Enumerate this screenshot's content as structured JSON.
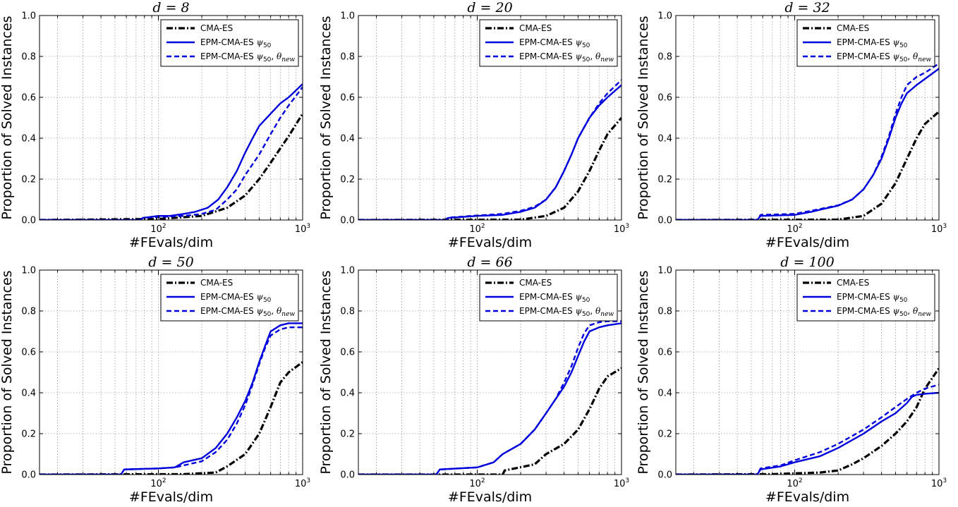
{
  "figure": {
    "xlabel": "#FEvals/dim",
    "ylabel": "Proportion of Solved Instances"
  },
  "chart_data": [
    {
      "type": "line",
      "title": "d = 8",
      "xscale": "log",
      "xlim": [
        15,
        1000
      ],
      "ylim": [
        0,
        1.0
      ],
      "xticks": [
        "10^2",
        "10^3"
      ],
      "yticks": [
        "0.0",
        "0.2",
        "0.4",
        "0.6",
        "0.8",
        "1.0"
      ],
      "grid": true,
      "legend": "top-right",
      "series": [
        {
          "name": "CMA-ES",
          "color": "#000000",
          "style": "dashdot",
          "x": [
            15,
            100,
            200,
            300,
            400,
            500,
            600,
            700,
            800,
            1000
          ],
          "y": [
            0.0,
            0.005,
            0.02,
            0.06,
            0.12,
            0.2,
            0.28,
            0.35,
            0.41,
            0.52
          ]
        },
        {
          "name": "EPM-CMA-ES ψ50",
          "color": "#0000dd",
          "style": "solid",
          "x": [
            15,
            75,
            78,
            100,
            120,
            150,
            180,
            220,
            260,
            300,
            350,
            400,
            450,
            500,
            600,
            700,
            800,
            1000
          ],
          "y": [
            0.0,
            0.0,
            0.01,
            0.02,
            0.02,
            0.03,
            0.04,
            0.06,
            0.1,
            0.16,
            0.24,
            0.33,
            0.4,
            0.46,
            0.52,
            0.57,
            0.6,
            0.665
          ]
        },
        {
          "name": "EPM-CMA-ES ψ50, θnew",
          "color": "#0000dd",
          "style": "dashed",
          "x": [
            15,
            75,
            78,
            100,
            150,
            200,
            250,
            300,
            350,
            400,
            500,
            600,
            700,
            800,
            1000
          ],
          "y": [
            0.0,
            0.0,
            0.01,
            0.015,
            0.02,
            0.03,
            0.05,
            0.1,
            0.15,
            0.22,
            0.32,
            0.42,
            0.5,
            0.56,
            0.65
          ]
        }
      ]
    },
    {
      "type": "line",
      "title": "d = 20",
      "xscale": "log",
      "xlim": [
        15,
        1000
      ],
      "ylim": [
        0,
        1.0
      ],
      "xticks": [
        "10^2",
        "10^3"
      ],
      "yticks": [
        "0.0",
        "0.2",
        "0.4",
        "0.6",
        "0.8",
        "1.0"
      ],
      "grid": true,
      "legend": "top-right",
      "series": [
        {
          "name": "CMA-ES",
          "color": "#000000",
          "style": "dashdot",
          "x": [
            15,
            200,
            300,
            400,
            500,
            600,
            700,
            800,
            1000
          ],
          "y": [
            0.0,
            0.002,
            0.02,
            0.06,
            0.14,
            0.24,
            0.34,
            0.42,
            0.5
          ]
        },
        {
          "name": "EPM-CMA-ES ψ50",
          "color": "#0000dd",
          "style": "solid",
          "x": [
            15,
            60,
            63,
            100,
            150,
            200,
            250,
            300,
            350,
            400,
            450,
            500,
            600,
            700,
            800,
            1000
          ],
          "y": [
            0.0,
            0.0,
            0.01,
            0.02,
            0.025,
            0.04,
            0.06,
            0.1,
            0.16,
            0.24,
            0.32,
            0.4,
            0.5,
            0.56,
            0.6,
            0.66
          ]
        },
        {
          "name": "EPM-CMA-ES ψ50, θnew",
          "color": "#0000dd",
          "style": "dashed",
          "x": [
            15,
            60,
            63,
            100,
            150,
            200,
            250,
            300,
            350,
            400,
            450,
            500,
            600,
            700,
            800,
            1000
          ],
          "y": [
            0.0,
            0.0,
            0.012,
            0.022,
            0.03,
            0.045,
            0.065,
            0.1,
            0.16,
            0.24,
            0.32,
            0.4,
            0.5,
            0.57,
            0.62,
            0.685
          ]
        }
      ]
    },
    {
      "type": "line",
      "title": "d = 32",
      "xscale": "log",
      "xlim": [
        15,
        1000
      ],
      "ylim": [
        0,
        1.0
      ],
      "xticks": [
        "10^2",
        "10^3"
      ],
      "yticks": [
        "0.0",
        "0.2",
        "0.4",
        "0.6",
        "0.8",
        "1.0"
      ],
      "grid": true,
      "legend": "top-right",
      "series": [
        {
          "name": "CMA-ES",
          "color": "#000000",
          "style": "dashdot",
          "x": [
            15,
            200,
            300,
            400,
            500,
            600,
            700,
            800,
            1000
          ],
          "y": [
            0.0,
            0.002,
            0.02,
            0.08,
            0.18,
            0.3,
            0.4,
            0.47,
            0.53
          ]
        },
        {
          "name": "EPM-CMA-ES ψ50",
          "color": "#0000dd",
          "style": "solid",
          "x": [
            15,
            55,
            58,
            100,
            130,
            160,
            200,
            250,
            300,
            350,
            400,
            450,
            500,
            550,
            600,
            700,
            800,
            1000
          ],
          "y": [
            0.0,
            0.0,
            0.02,
            0.025,
            0.04,
            0.055,
            0.07,
            0.1,
            0.15,
            0.22,
            0.3,
            0.4,
            0.5,
            0.57,
            0.62,
            0.66,
            0.69,
            0.74
          ]
        },
        {
          "name": "EPM-CMA-ES ψ50, θnew",
          "color": "#0000dd",
          "style": "dashed",
          "x": [
            15,
            55,
            58,
            100,
            130,
            160,
            200,
            250,
            300,
            350,
            400,
            450,
            500,
            550,
            600,
            700,
            800,
            1000
          ],
          "y": [
            0.0,
            0.0,
            0.025,
            0.03,
            0.045,
            0.058,
            0.072,
            0.1,
            0.15,
            0.22,
            0.31,
            0.41,
            0.52,
            0.6,
            0.66,
            0.7,
            0.72,
            0.765
          ]
        }
      ]
    },
    {
      "type": "line",
      "title": "d = 50",
      "xscale": "log",
      "xlim": [
        15,
        1000
      ],
      "ylim": [
        0,
        1.0
      ],
      "xticks": [
        "10^2",
        "10^3"
      ],
      "yticks": [
        "0.0",
        "0.2",
        "0.4",
        "0.6",
        "0.8",
        "1.0"
      ],
      "grid": true,
      "legend": "top-right",
      "series": [
        {
          "name": "CMA-ES",
          "color": "#000000",
          "style": "dashdot",
          "x": [
            15,
            150,
            250,
            300,
            400,
            500,
            600,
            700,
            800,
            1000
          ],
          "y": [
            0.0,
            0.002,
            0.01,
            0.04,
            0.1,
            0.2,
            0.33,
            0.45,
            0.5,
            0.55
          ]
        },
        {
          "name": "EPM-CMA-ES ψ50",
          "color": "#0000dd",
          "style": "solid",
          "x": [
            15,
            55,
            58,
            100,
            130,
            150,
            200,
            250,
            300,
            350,
            400,
            450,
            500,
            550,
            600,
            700,
            800,
            1000
          ],
          "y": [
            0.0,
            0.0,
            0.025,
            0.03,
            0.035,
            0.06,
            0.08,
            0.13,
            0.2,
            0.28,
            0.36,
            0.45,
            0.55,
            0.63,
            0.7,
            0.73,
            0.74,
            0.74
          ]
        },
        {
          "name": "EPM-CMA-ES ψ50, θnew",
          "color": "#0000dd",
          "style": "dashed",
          "x": [
            15,
            55,
            58,
            100,
            130,
            150,
            200,
            250,
            300,
            350,
            400,
            450,
            500,
            550,
            600,
            700,
            800,
            1000
          ],
          "y": [
            0.0,
            0.0,
            0.025,
            0.03,
            0.035,
            0.045,
            0.065,
            0.11,
            0.17,
            0.25,
            0.34,
            0.44,
            0.54,
            0.62,
            0.68,
            0.71,
            0.72,
            0.72
          ]
        }
      ]
    },
    {
      "type": "line",
      "title": "d = 66",
      "xscale": "log",
      "xlim": [
        15,
        1000
      ],
      "ylim": [
        0,
        1.0
      ],
      "xticks": [
        "10^2",
        "10^3"
      ],
      "yticks": [
        "0.0",
        "0.2",
        "0.4",
        "0.6",
        "0.8",
        "1.0"
      ],
      "grid": true,
      "legend": "top-right",
      "series": [
        {
          "name": "CMA-ES",
          "color": "#000000",
          "style": "dashdot",
          "x": [
            15,
            150,
            155,
            250,
            300,
            400,
            500,
            600,
            700,
            800,
            1000
          ],
          "y": [
            0.0,
            0.0,
            0.02,
            0.05,
            0.1,
            0.15,
            0.22,
            0.32,
            0.42,
            0.48,
            0.52
          ]
        },
        {
          "name": "EPM-CMA-ES ψ50",
          "color": "#0000dd",
          "style": "solid",
          "x": [
            15,
            52,
            55,
            100,
            130,
            150,
            200,
            250,
            300,
            350,
            400,
            450,
            500,
            550,
            600,
            700,
            800,
            1000
          ],
          "y": [
            0.0,
            0.0,
            0.025,
            0.035,
            0.06,
            0.1,
            0.15,
            0.22,
            0.3,
            0.37,
            0.43,
            0.5,
            0.58,
            0.65,
            0.7,
            0.72,
            0.73,
            0.74
          ]
        },
        {
          "name": "EPM-CMA-ES ψ50, θnew",
          "color": "#0000dd",
          "style": "dashed",
          "x": [
            15,
            52,
            55,
            100,
            130,
            150,
            200,
            250,
            300,
            350,
            400,
            450,
            500,
            550,
            600,
            700,
            800,
            1000
          ],
          "y": [
            0.0,
            0.0,
            0.025,
            0.035,
            0.06,
            0.1,
            0.15,
            0.22,
            0.3,
            0.37,
            0.45,
            0.53,
            0.62,
            0.69,
            0.73,
            0.745,
            0.75,
            0.75
          ]
        }
      ]
    },
    {
      "type": "line",
      "title": "d = 100",
      "xscale": "log",
      "xlim": [
        15,
        1000
      ],
      "ylim": [
        0,
        1.0
      ],
      "xticks": [
        "10^2",
        "10^3"
      ],
      "yticks": [
        "0.0",
        "0.2",
        "0.4",
        "0.6",
        "0.8",
        "1.0"
      ],
      "grid": true,
      "legend": "top-right",
      "series": [
        {
          "name": "CMA-ES",
          "color": "#000000",
          "style": "dashdot",
          "x": [
            15,
            70,
            150,
            200,
            250,
            300,
            400,
            500,
            600,
            700,
            800,
            1000
          ],
          "y": [
            0.0,
            0.002,
            0.01,
            0.02,
            0.05,
            0.08,
            0.14,
            0.2,
            0.26,
            0.33,
            0.42,
            0.52
          ]
        },
        {
          "name": "EPM-CMA-ES ψ50",
          "color": "#0000dd",
          "style": "solid",
          "x": [
            15,
            55,
            58,
            80,
            100,
            150,
            200,
            300,
            400,
            500,
            600,
            650,
            700,
            800,
            1000
          ],
          "y": [
            0.0,
            0.0,
            0.025,
            0.04,
            0.06,
            0.09,
            0.13,
            0.2,
            0.26,
            0.3,
            0.35,
            0.38,
            0.39,
            0.395,
            0.4
          ]
        },
        {
          "name": "EPM-CMA-ES ψ50, θnew",
          "color": "#0000dd",
          "style": "dashed",
          "x": [
            15,
            55,
            58,
            80,
            100,
            150,
            200,
            300,
            400,
            500,
            600,
            700,
            800,
            1000
          ],
          "y": [
            0.0,
            0.0,
            0.03,
            0.045,
            0.07,
            0.11,
            0.15,
            0.22,
            0.28,
            0.33,
            0.37,
            0.4,
            0.42,
            0.44
          ]
        }
      ]
    }
  ]
}
